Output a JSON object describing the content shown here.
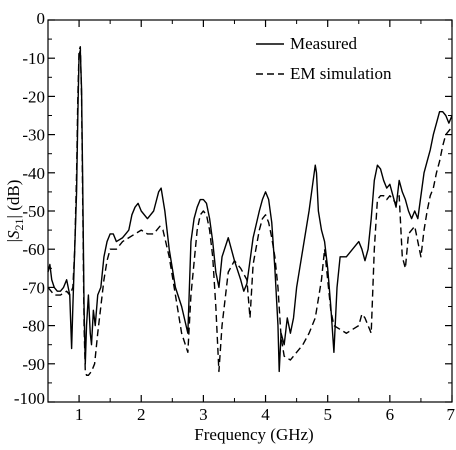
{
  "chart_data": {
    "type": "line",
    "title": "",
    "xlabel": "Frequency (GHz)",
    "ylabel": {
      "prefix": "|",
      "symbol": "S",
      "subscript": "21",
      "suffix": "| (dB)"
    },
    "xlim": [
      0.5,
      7.0
    ],
    "ylim": [
      -100,
      0
    ],
    "x_ticks": [
      1,
      2,
      3,
      4,
      5,
      6,
      7
    ],
    "y_ticks": [
      0,
      -10,
      -20,
      -30,
      -40,
      -50,
      -60,
      -70,
      -80,
      -90,
      -100
    ],
    "grid": false,
    "legend_position": "top-right",
    "series": [
      {
        "name": "Measured",
        "style": "solid",
        "color": "#000000",
        "points": [
          [
            0.5,
            -66
          ],
          [
            0.53,
            -64
          ],
          [
            0.56,
            -68
          ],
          [
            0.6,
            -70
          ],
          [
            0.65,
            -71
          ],
          [
            0.7,
            -71
          ],
          [
            0.75,
            -70
          ],
          [
            0.8,
            -68
          ],
          [
            0.85,
            -72
          ],
          [
            0.88,
            -86
          ],
          [
            0.9,
            -75
          ],
          [
            0.93,
            -60
          ],
          [
            0.96,
            -45
          ],
          [
            0.98,
            -25
          ],
          [
            1.0,
            -9
          ],
          [
            1.02,
            -8
          ],
          [
            1.04,
            -18
          ],
          [
            1.06,
            -45
          ],
          [
            1.08,
            -75
          ],
          [
            1.1,
            -90
          ],
          [
            1.12,
            -80
          ],
          [
            1.15,
            -72
          ],
          [
            1.18,
            -82
          ],
          [
            1.2,
            -85
          ],
          [
            1.23,
            -76
          ],
          [
            1.26,
            -80
          ],
          [
            1.3,
            -72
          ],
          [
            1.35,
            -70
          ],
          [
            1.4,
            -62
          ],
          [
            1.45,
            -58
          ],
          [
            1.5,
            -56
          ],
          [
            1.55,
            -56
          ],
          [
            1.6,
            -58
          ],
          [
            1.7,
            -57
          ],
          [
            1.8,
            -55
          ],
          [
            1.85,
            -51
          ],
          [
            1.9,
            -49
          ],
          [
            1.95,
            -48
          ],
          [
            2.0,
            -50
          ],
          [
            2.1,
            -52
          ],
          [
            2.2,
            -50
          ],
          [
            2.28,
            -45
          ],
          [
            2.32,
            -44
          ],
          [
            2.38,
            -50
          ],
          [
            2.45,
            -60
          ],
          [
            2.55,
            -70
          ],
          [
            2.65,
            -75
          ],
          [
            2.75,
            -82
          ],
          [
            2.8,
            -58
          ],
          [
            2.85,
            -52
          ],
          [
            2.9,
            -49
          ],
          [
            2.95,
            -47
          ],
          [
            3.0,
            -47
          ],
          [
            3.05,
            -48
          ],
          [
            3.1,
            -52
          ],
          [
            3.15,
            -58
          ],
          [
            3.2,
            -66
          ],
          [
            3.25,
            -70
          ],
          [
            3.3,
            -62
          ],
          [
            3.4,
            -57
          ],
          [
            3.5,
            -63
          ],
          [
            3.6,
            -68
          ],
          [
            3.65,
            -71
          ],
          [
            3.7,
            -69
          ],
          [
            3.8,
            -57
          ],
          [
            3.9,
            -50
          ],
          [
            3.95,
            -47
          ],
          [
            4.0,
            -45
          ],
          [
            4.05,
            -47
          ],
          [
            4.1,
            -53
          ],
          [
            4.15,
            -65
          ],
          [
            4.2,
            -80
          ],
          [
            4.22,
            -92
          ],
          [
            4.25,
            -82
          ],
          [
            4.3,
            -85
          ],
          [
            4.35,
            -78
          ],
          [
            4.4,
            -82
          ],
          [
            4.45,
            -78
          ],
          [
            4.5,
            -70
          ],
          [
            4.55,
            -65
          ],
          [
            4.6,
            -60
          ],
          [
            4.65,
            -55
          ],
          [
            4.7,
            -50
          ],
          [
            4.75,
            -44
          ],
          [
            4.8,
            -38
          ],
          [
            4.82,
            -40
          ],
          [
            4.85,
            -50
          ],
          [
            4.9,
            -55
          ],
          [
            4.95,
            -58
          ],
          [
            5.0,
            -65
          ],
          [
            5.05,
            -75
          ],
          [
            5.1,
            -87
          ],
          [
            5.15,
            -70
          ],
          [
            5.2,
            -62
          ],
          [
            5.3,
            -62
          ],
          [
            5.4,
            -60
          ],
          [
            5.5,
            -58
          ],
          [
            5.55,
            -60
          ],
          [
            5.6,
            -63
          ],
          [
            5.65,
            -60
          ],
          [
            5.7,
            -52
          ],
          [
            5.75,
            -42
          ],
          [
            5.8,
            -38
          ],
          [
            5.85,
            -39
          ],
          [
            5.9,
            -42
          ],
          [
            5.95,
            -44
          ],
          [
            6.0,
            -43
          ],
          [
            6.05,
            -46
          ],
          [
            6.1,
            -49
          ],
          [
            6.15,
            -42
          ],
          [
            6.2,
            -45
          ],
          [
            6.25,
            -47
          ],
          [
            6.3,
            -50
          ],
          [
            6.35,
            -52
          ],
          [
            6.4,
            -50
          ],
          [
            6.45,
            -52
          ],
          [
            6.5,
            -46
          ],
          [
            6.55,
            -40
          ],
          [
            6.6,
            -37
          ],
          [
            6.65,
            -34
          ],
          [
            6.7,
            -30
          ],
          [
            6.75,
            -27
          ],
          [
            6.8,
            -24
          ],
          [
            6.85,
            -24
          ],
          [
            6.9,
            -25
          ],
          [
            6.95,
            -27
          ],
          [
            7.0,
            -25
          ]
        ]
      },
      {
        "name": "EM simulation",
        "style": "dashed",
        "color": "#000000",
        "points": [
          [
            0.5,
            -70
          ],
          [
            0.55,
            -71
          ],
          [
            0.6,
            -72
          ],
          [
            0.7,
            -72
          ],
          [
            0.8,
            -71
          ],
          [
            0.85,
            -72
          ],
          [
            0.9,
            -70
          ],
          [
            0.93,
            -60
          ],
          [
            0.96,
            -40
          ],
          [
            0.98,
            -20
          ],
          [
            1.0,
            -8
          ],
          [
            1.02,
            -7
          ],
          [
            1.04,
            -20
          ],
          [
            1.06,
            -50
          ],
          [
            1.08,
            -80
          ],
          [
            1.1,
            -92
          ],
          [
            1.12,
            -93
          ],
          [
            1.15,
            -93
          ],
          [
            1.2,
            -92
          ],
          [
            1.25,
            -90
          ],
          [
            1.3,
            -82
          ],
          [
            1.35,
            -75
          ],
          [
            1.4,
            -68
          ],
          [
            1.45,
            -63
          ],
          [
            1.5,
            -60
          ],
          [
            1.6,
            -60
          ],
          [
            1.7,
            -58
          ],
          [
            1.8,
            -57
          ],
          [
            1.9,
            -56
          ],
          [
            2.0,
            -55
          ],
          [
            2.1,
            -56
          ],
          [
            2.2,
            -56
          ],
          [
            2.3,
            -54
          ],
          [
            2.35,
            -55
          ],
          [
            2.45,
            -62
          ],
          [
            2.55,
            -72
          ],
          [
            2.65,
            -82
          ],
          [
            2.75,
            -87
          ],
          [
            2.8,
            -72
          ],
          [
            2.9,
            -55
          ],
          [
            2.95,
            -51
          ],
          [
            3.0,
            -50
          ],
          [
            3.05,
            -51
          ],
          [
            3.1,
            -55
          ],
          [
            3.15,
            -62
          ],
          [
            3.2,
            -75
          ],
          [
            3.25,
            -92
          ],
          [
            3.3,
            -80
          ],
          [
            3.4,
            -66
          ],
          [
            3.5,
            -63
          ],
          [
            3.6,
            -65
          ],
          [
            3.7,
            -68
          ],
          [
            3.75,
            -78
          ],
          [
            3.8,
            -64
          ],
          [
            3.9,
            -55
          ],
          [
            3.95,
            -52
          ],
          [
            4.0,
            -51
          ],
          [
            4.05,
            -53
          ],
          [
            4.1,
            -57
          ],
          [
            4.15,
            -62
          ],
          [
            4.2,
            -70
          ],
          [
            4.25,
            -83
          ],
          [
            4.3,
            -88
          ],
          [
            4.4,
            -89
          ],
          [
            4.5,
            -87
          ],
          [
            4.6,
            -85
          ],
          [
            4.7,
            -82
          ],
          [
            4.8,
            -78
          ],
          [
            4.85,
            -73
          ],
          [
            4.9,
            -68
          ],
          [
            4.95,
            -60
          ],
          [
            5.0,
            -68
          ],
          [
            5.05,
            -76
          ],
          [
            5.1,
            -80
          ],
          [
            5.2,
            -81
          ],
          [
            5.3,
            -82
          ],
          [
            5.4,
            -81
          ],
          [
            5.5,
            -80
          ],
          [
            5.55,
            -77
          ],
          [
            5.6,
            -78
          ],
          [
            5.65,
            -80
          ],
          [
            5.7,
            -82
          ],
          [
            5.75,
            -60
          ],
          [
            5.8,
            -47
          ],
          [
            5.85,
            -46
          ],
          [
            5.9,
            -46
          ],
          [
            5.95,
            -47
          ],
          [
            6.0,
            -46
          ],
          [
            6.05,
            -47
          ],
          [
            6.1,
            -48
          ],
          [
            6.15,
            -46
          ],
          [
            6.2,
            -62
          ],
          [
            6.25,
            -65
          ],
          [
            6.3,
            -56
          ],
          [
            6.4,
            -54
          ],
          [
            6.45,
            -58
          ],
          [
            6.5,
            -62
          ],
          [
            6.55,
            -55
          ],
          [
            6.6,
            -50
          ],
          [
            6.65,
            -46
          ],
          [
            6.7,
            -44
          ],
          [
            6.75,
            -40
          ],
          [
            6.8,
            -37
          ],
          [
            6.85,
            -33
          ],
          [
            6.9,
            -30
          ],
          [
            6.95,
            -29
          ],
          [
            7.0,
            -28
          ]
        ]
      }
    ]
  }
}
